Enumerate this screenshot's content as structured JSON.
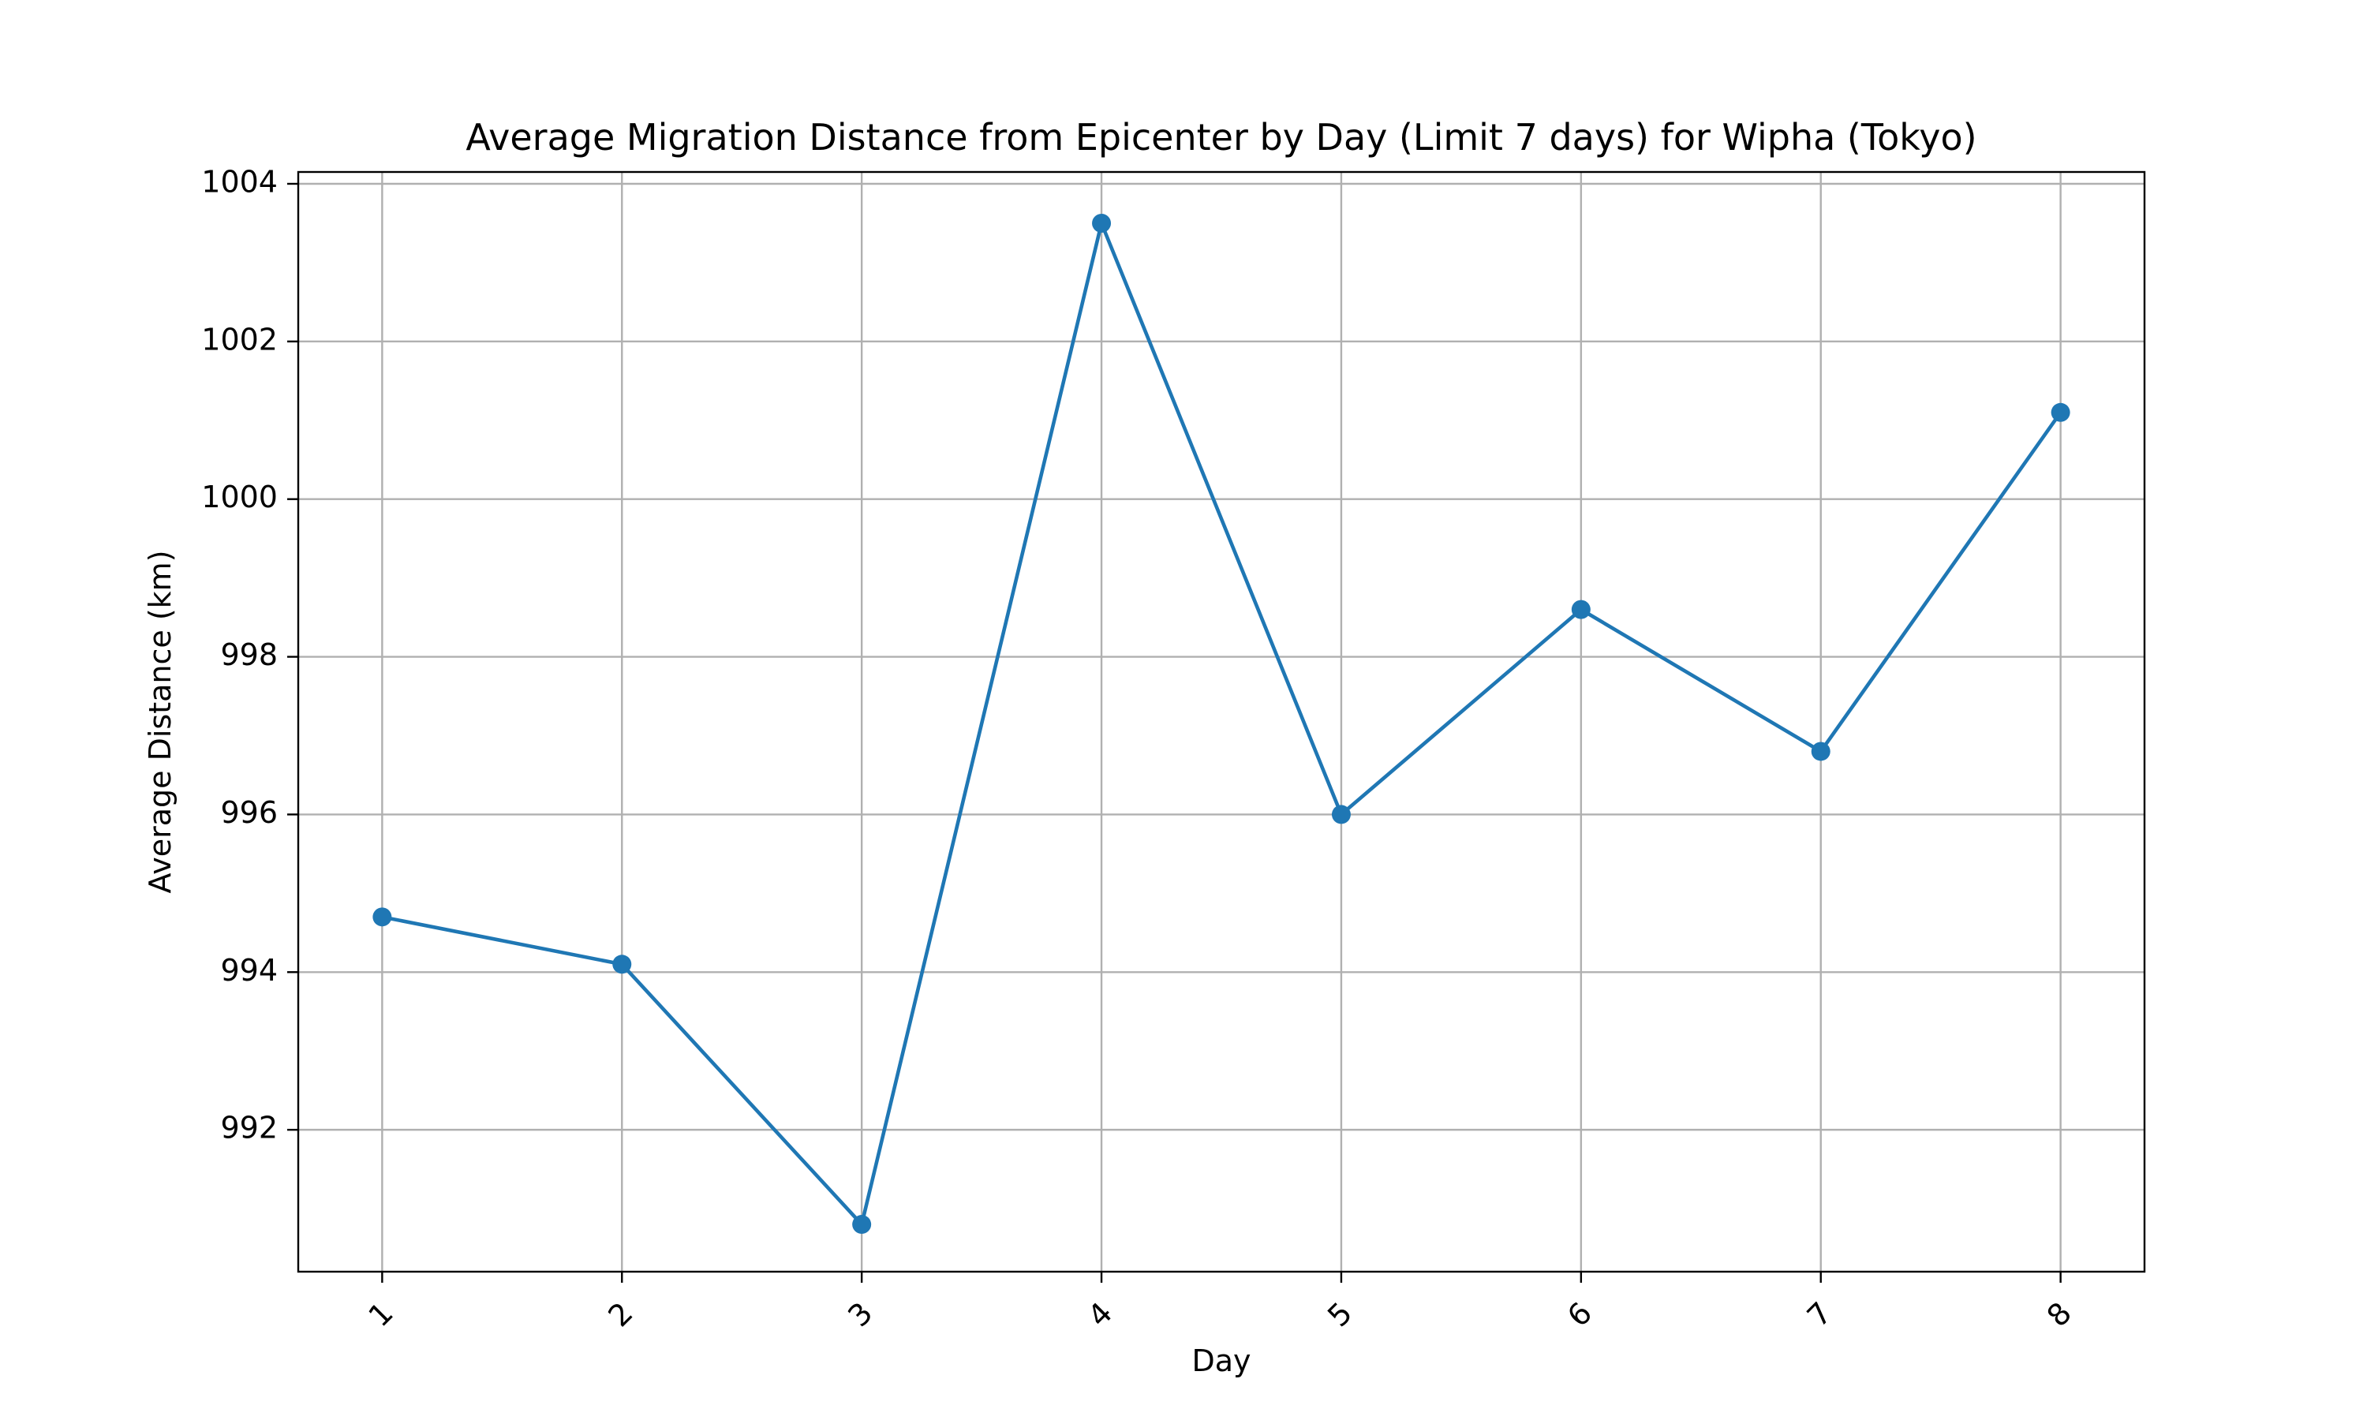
{
  "chart_data": {
    "type": "line",
    "title": "Average Migration Distance from Epicenter by Day (Limit 7 days) for Wipha (Tokyo)",
    "xlabel": "Day",
    "ylabel": "Average Distance (km)",
    "x": [
      1,
      2,
      3,
      4,
      5,
      6,
      7,
      8
    ],
    "xticks": [
      "1",
      "2",
      "3",
      "4",
      "5",
      "6",
      "7",
      "8"
    ],
    "xtick_rotation": 45,
    "xlim": [
      0.65,
      8.35
    ],
    "yticks": [
      992,
      994,
      996,
      998,
      1000,
      1002,
      1004
    ],
    "ylim": [
      990.2,
      1004.15
    ],
    "grid": true,
    "series": [
      {
        "values": [
          994.7,
          994.1,
          990.8,
          1003.5,
          996.0,
          998.6,
          996.8,
          1001.1
        ],
        "color": "#1f77b4",
        "marker": "circle"
      }
    ]
  }
}
